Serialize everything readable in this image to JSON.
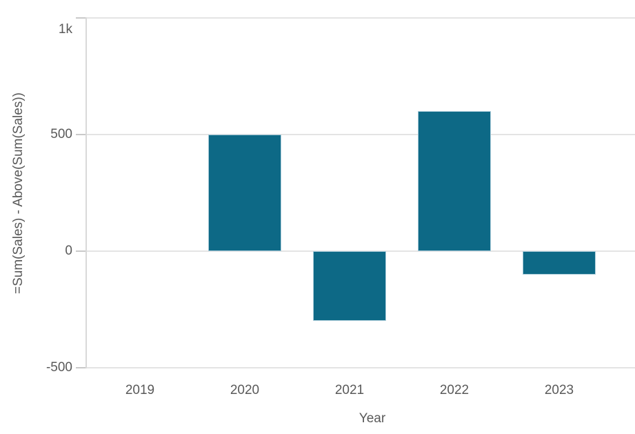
{
  "chart_data": {
    "type": "bar",
    "xlabel": "Year",
    "ylabel": "=Sum(Sales) - Above(Sum(Sales))",
    "categories": [
      "2019",
      "2020",
      "2021",
      "2022",
      "2023"
    ],
    "values": [
      null,
      500,
      -300,
      600,
      -100
    ],
    "series_name": "=Sum(Sales) - Above(Sum(Sales))",
    "ylim": [
      -500,
      1000
    ],
    "yticks": [
      {
        "value": 1000,
        "label": "1k"
      },
      {
        "value": 500,
        "label": "500"
      },
      {
        "value": 0,
        "label": "0"
      },
      {
        "value": -500,
        "label": "-500"
      }
    ],
    "grid": "horizontal-only",
    "legend": "none",
    "bar_color": "#0d6986"
  },
  "colors": {
    "background": "#ffffff",
    "bar": "#0d6986",
    "bar_edge": "#a9cbd9",
    "grid_line": "#e4e4e4",
    "axis_line": "#d9d9d9",
    "tick_mark": "#c9c9c9",
    "label_text": "#595959"
  }
}
